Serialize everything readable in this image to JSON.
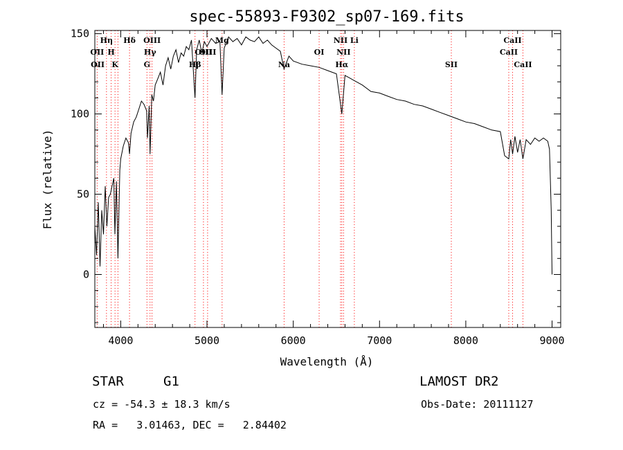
{
  "chart_data": {
    "type": "line",
    "title": "spec-55893-F9302_sp07-169.fits",
    "xlabel": "Wavelength (Å)",
    "ylabel": "Flux (relative)",
    "xlim": [
      3700,
      9100
    ],
    "ylim": [
      -33,
      152
    ],
    "x_ticks": [
      4000,
      5000,
      6000,
      7000,
      8000,
      9000
    ],
    "x_tick_labels": [
      "4000",
      "5000",
      "6000",
      "7000",
      "8000",
      "9000"
    ],
    "y_ticks": [
      0,
      50,
      100,
      150
    ],
    "y_tick_labels": [
      "0",
      "50",
      "100",
      "150"
    ],
    "grid": false,
    "series": [
      {
        "x": [
          3700,
          3720,
          3740,
          3760,
          3780,
          3800,
          3820,
          3840,
          3860,
          3880,
          3900,
          3920,
          3933,
          3950,
          3968,
          3990,
          4000,
          4030,
          4060,
          4090,
          4102,
          4120,
          4150,
          4180,
          4210,
          4240,
          4270,
          4300,
          4310,
          4330,
          4340,
          4360,
          4380,
          4400,
          4430,
          4460,
          4490,
          4520,
          4550,
          4580,
          4610,
          4640,
          4670,
          4700,
          4730,
          4760,
          4790,
          4820,
          4861,
          4880,
          4910,
          4940,
          4970,
          5000,
          5050,
          5100,
          5150,
          5175,
          5200,
          5250,
          5300,
          5350,
          5400,
          5450,
          5500,
          5550,
          5600,
          5650,
          5700,
          5750,
          5800,
          5850,
          5893,
          5950,
          6000,
          6100,
          6200,
          6300,
          6400,
          6500,
          6563,
          6600,
          6700,
          6800,
          6900,
          7000,
          7100,
          7200,
          7300,
          7400,
          7500,
          7600,
          7700,
          7800,
          7900,
          8000,
          8100,
          8200,
          8300,
          8400,
          8450,
          8498,
          8520,
          8542,
          8570,
          8600,
          8630,
          8662,
          8700,
          8750,
          8800,
          8850,
          8900,
          8950,
          8970,
          8990,
          9000
        ],
        "y": [
          30,
          12,
          45,
          5,
          40,
          25,
          55,
          30,
          48,
          50,
          55,
          60,
          25,
          58,
          10,
          65,
          72,
          80,
          85,
          82,
          75,
          88,
          95,
          98,
          103,
          108,
          106,
          102,
          85,
          105,
          75,
          112,
          108,
          118,
          122,
          126,
          118,
          130,
          135,
          128,
          136,
          140,
          132,
          138,
          136,
          142,
          140,
          146,
          110,
          140,
          146,
          138,
          145,
          142,
          147,
          144,
          145,
          112,
          141,
          148,
          145,
          147,
          143,
          148,
          146,
          145,
          148,
          144,
          146,
          143,
          141,
          139,
          128,
          136,
          133,
          131,
          130,
          129,
          127,
          125,
          100,
          124,
          121,
          118,
          114,
          113,
          111,
          109,
          108,
          106,
          105,
          103,
          101,
          99,
          97,
          95,
          94,
          92,
          90,
          89,
          74,
          72,
          84,
          75,
          86,
          76,
          84,
          72,
          84,
          81,
          85,
          83,
          85,
          83,
          78,
          40,
          0
        ]
      }
    ],
    "line_labels": [
      {
        "x": 3727,
        "label": "OII",
        "row": 2
      },
      {
        "x": 3733,
        "label": "OII",
        "row": 3
      },
      {
        "x": 3835,
        "label": "Hη",
        "row": 1
      },
      {
        "x": 3889,
        "label": "H",
        "row": 2
      },
      {
        "x": 3934,
        "label": "K",
        "row": 3
      },
      {
        "x": 4102,
        "label": "Hδ",
        "row": 1
      },
      {
        "x": 4340,
        "label": "Hγ",
        "row": 2
      },
      {
        "x": 4304,
        "label": "G",
        "row": 3
      },
      {
        "x": 4363,
        "label": "OIII",
        "row": 1
      },
      {
        "x": 4861,
        "label": "Hβ",
        "row": 3
      },
      {
        "x": 4959,
        "label": "OIII",
        "row": 2
      },
      {
        "x": 5007,
        "label": "OIII",
        "row": 2
      },
      {
        "x": 5175,
        "label": "Mg",
        "row": 1
      },
      {
        "x": 5894,
        "label": "Na",
        "row": 3
      },
      {
        "x": 6300,
        "label": "OI",
        "row": 2
      },
      {
        "x": 6548,
        "label": "NII",
        "row": 1
      },
      {
        "x": 6583,
        "label": "NII",
        "row": 2
      },
      {
        "x": 6563,
        "label": "Hα",
        "row": 3
      },
      {
        "x": 6708,
        "label": "Li",
        "row": 1
      },
      {
        "x": 7832,
        "label": "SII",
        "row": 3
      },
      {
        "x": 8498,
        "label": "CaII",
        "row": 2
      },
      {
        "x": 8542,
        "label": "CaII",
        "row": 1
      },
      {
        "x": 8662,
        "label": "CaII",
        "row": 3
      }
    ],
    "line_markers": [
      3727,
      3835,
      3889,
      3934,
      3968,
      4102,
      4304,
      4340,
      4363,
      4861,
      4959,
      5007,
      5175,
      5894,
      6300,
      6548,
      6563,
      6583,
      6708,
      7832,
      8498,
      8542,
      8662
    ],
    "colors": {
      "spectrum": "#000000",
      "line_markers": "#ff0000",
      "axes": "#000000"
    }
  },
  "footer": {
    "object_class": "STAR",
    "subclass": "G1",
    "survey": "LAMOST DR2",
    "redshift": "cz = -54.3 ± 18.3 km/s",
    "obs_date": "Obs-Date: 20111127",
    "coords": "RA =   3.01463, DEC =   2.84402"
  }
}
